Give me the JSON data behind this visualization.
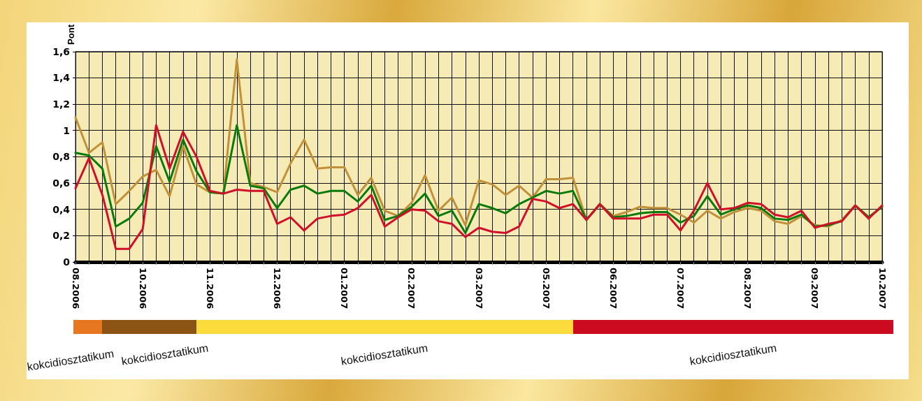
{
  "chart_data": {
    "type": "line",
    "ylabel": "Pont",
    "categories": [
      "08.2006",
      null,
      null,
      null,
      null,
      "10.2006",
      null,
      null,
      null,
      null,
      "11.2006",
      null,
      null,
      null,
      null,
      "12.2006",
      null,
      null,
      null,
      null,
      "01.2007",
      null,
      null,
      null,
      null,
      "02.2007",
      null,
      null,
      null,
      null,
      "03.2007",
      null,
      null,
      null,
      null,
      "05.2007",
      null,
      null,
      null,
      null,
      "06.2007",
      null,
      null,
      null,
      null,
      "07.2007",
      null,
      null,
      null,
      null,
      "08.2007",
      null,
      null,
      null,
      null,
      "09.2007",
      null,
      null,
      null,
      null,
      "10.2007"
    ],
    "series": [
      {
        "color": "#c0913a",
        "values": [
          1.1,
          0.83,
          0.91,
          0.44,
          0.54,
          0.65,
          0.7,
          0.5,
          0.88,
          0.59,
          0.53,
          0.52,
          1.54,
          0.6,
          0.57,
          0.53,
          0.75,
          0.93,
          0.71,
          0.72,
          0.72,
          0.51,
          0.64,
          0.39,
          0.35,
          0.45,
          0.66,
          0.39,
          0.49,
          0.28,
          0.62,
          0.59,
          0.51,
          0.58,
          0.49,
          0.63,
          0.63,
          0.64,
          0.32,
          0.44,
          0.35,
          0.38,
          0.42,
          0.41,
          0.41,
          0.36,
          0.3,
          0.39,
          0.33,
          0.38,
          0.41,
          0.39,
          0.31,
          0.29,
          0.35,
          0.28,
          0.27,
          0.32,
          0.43,
          0.34,
          0.42
        ]
      },
      {
        "color": "#0a7a0a",
        "values": [
          0.83,
          0.81,
          0.71,
          0.27,
          0.33,
          0.45,
          0.88,
          0.61,
          0.93,
          0.69,
          0.53,
          0.52,
          1.04,
          0.58,
          0.56,
          0.41,
          0.55,
          0.58,
          0.52,
          0.54,
          0.54,
          0.46,
          0.58,
          0.32,
          0.35,
          0.42,
          0.52,
          0.35,
          0.39,
          0.22,
          0.44,
          0.41,
          0.37,
          0.44,
          0.49,
          0.54,
          0.52,
          0.54,
          0.32,
          0.44,
          0.34,
          0.35,
          0.37,
          0.38,
          0.38,
          0.3,
          0.35,
          0.5,
          0.36,
          0.4,
          0.43,
          0.41,
          0.33,
          0.32,
          0.36,
          0.27,
          0.28,
          0.31,
          0.43,
          0.34,
          0.42
        ]
      },
      {
        "color": "#d0102a",
        "values": [
          0.56,
          0.79,
          0.51,
          0.1,
          0.1,
          0.25,
          1.04,
          0.71,
          0.99,
          0.8,
          0.54,
          0.52,
          0.55,
          0.54,
          0.54,
          0.29,
          0.34,
          0.24,
          0.33,
          0.35,
          0.36,
          0.41,
          0.51,
          0.27,
          0.34,
          0.4,
          0.39,
          0.31,
          0.29,
          0.19,
          0.26,
          0.23,
          0.22,
          0.27,
          0.48,
          0.46,
          0.41,
          0.44,
          0.32,
          0.44,
          0.33,
          0.33,
          0.33,
          0.36,
          0.36,
          0.24,
          0.39,
          0.6,
          0.4,
          0.41,
          0.45,
          0.44,
          0.36,
          0.34,
          0.39,
          0.26,
          0.29,
          0.31,
          0.43,
          0.33,
          0.43
        ]
      }
    ],
    "ylim": [
      0,
      1.6
    ],
    "yticks": [
      0,
      {
        "value": 0.2,
        "label": "0,2"
      },
      {
        "value": 0.4,
        "label": "0,4"
      },
      {
        "value": 0.6,
        "label": "0,6"
      },
      {
        "value": 0.8,
        "label": "0,8"
      },
      1,
      {
        "value": 1.2,
        "label": "1,2"
      },
      {
        "value": 1.4,
        "label": "1,4"
      },
      {
        "value": 1.6,
        "label": "1,6"
      }
    ],
    "grid": true,
    "marker": "none",
    "line_style": "solid",
    "annotations": [
      "kokcidiosztatikum",
      "kokcidiosztatikum",
      "kokcidiosztatikum",
      "kokcidiosztatikum"
    ]
  }
}
